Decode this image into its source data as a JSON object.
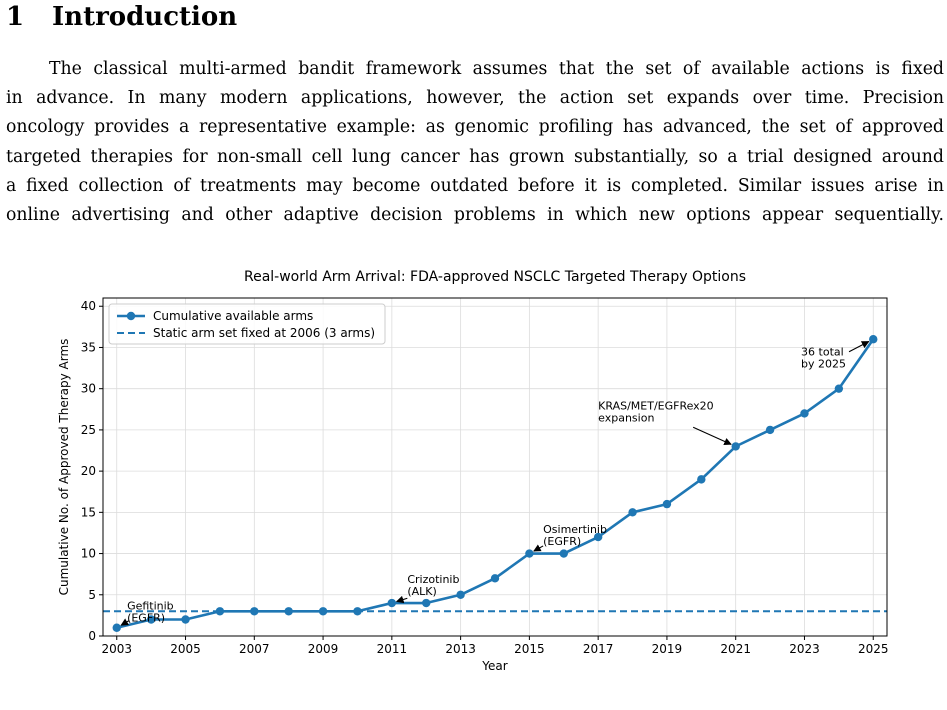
{
  "section": {
    "number": "1",
    "title": "Introduction"
  },
  "paragraph_lines": [
    "The classical multi-armed bandit framework assumes that the set of available actions is fixed",
    "in advance. In many modern applications, however, the action set expands over time. Precision",
    "oncology provides a representative example: as genomic profiling has advanced, the set of approved",
    "targeted therapies for non-small cell lung cancer has grown substantially, so a trial designed around",
    "a fixed collection of treatments may become outdated before it is completed. Similar issues arise in",
    "online advertising and other adaptive decision problems in which new options appear sequentially."
  ],
  "chart_data": {
    "type": "line",
    "title": "Real-world Arm Arrival: FDA-approved NSCLC Targeted Therapy Options",
    "xlabel": "Year",
    "ylabel": "Cumulative No. of Approved Therapy Arms",
    "xlim": [
      2002.6,
      2025.4
    ],
    "ylim": [
      0,
      41
    ],
    "xticks": [
      2003,
      2005,
      2007,
      2009,
      2011,
      2013,
      2015,
      2017,
      2019,
      2021,
      2023,
      2025
    ],
    "yticks": [
      0,
      5,
      10,
      15,
      20,
      25,
      30,
      35,
      40
    ],
    "grid": true,
    "legend_position": "top-left",
    "series": [
      {
        "name": "Cumulative available arms",
        "color": "#1f77b4",
        "x": [
          2003,
          2004,
          2005,
          2006,
          2007,
          2008,
          2009,
          2010,
          2011,
          2012,
          2013,
          2014,
          2015,
          2016,
          2017,
          2018,
          2019,
          2020,
          2021,
          2022,
          2023,
          2024,
          2025
        ],
        "y": [
          1,
          2,
          2,
          3,
          3,
          3,
          3,
          3,
          4,
          4,
          5,
          7,
          10,
          10,
          12,
          15,
          16,
          19,
          23,
          25,
          27,
          30,
          36
        ]
      }
    ],
    "reference_line": {
      "name": "Static arm set fixed at 2006 (3 arms)",
      "y": 3,
      "color": "#1f77b4",
      "style": "dashed"
    },
    "annotations": [
      {
        "lines": [
          "Gefitinib",
          "(EGFR)"
        ],
        "point": [
          2003,
          1
        ],
        "text_at": [
          2003.3,
          3.2
        ]
      },
      {
        "lines": [
          "Crizotinib",
          "(ALK)"
        ],
        "point": [
          2011,
          4
        ],
        "text_at": [
          2011.45,
          6.4
        ]
      },
      {
        "lines": [
          "Osimertinib",
          "(EGFR)"
        ],
        "point": [
          2015,
          10
        ],
        "text_at": [
          2015.4,
          12.5
        ]
      },
      {
        "lines": [
          "KRAS/MET/EGFRex20",
          "expansion"
        ],
        "point": [
          2021,
          23
        ],
        "text_at": [
          2017,
          27.5
        ]
      },
      {
        "lines": [
          "36 total",
          "by 2025"
        ],
        "point": [
          2025,
          36
        ],
        "text_at": [
          2022.9,
          34
        ]
      }
    ]
  }
}
